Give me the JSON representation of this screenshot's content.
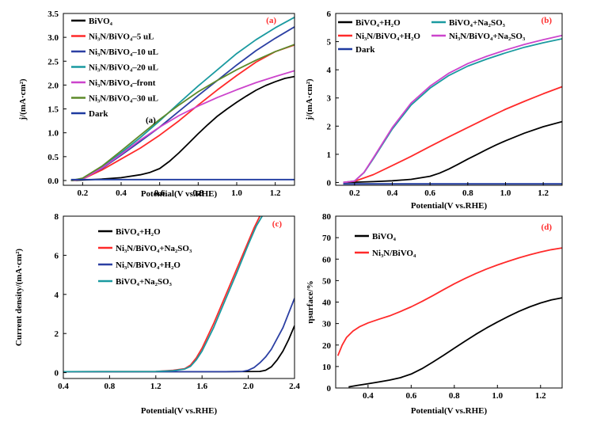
{
  "chart_data": [
    {
      "type": "line",
      "panel_label": "(a)",
      "inner_label": "(a)",
      "xlabel": "Potential(V vs.RHE)",
      "ylabel": "j/(mA·cm²)",
      "xlim": [
        0.1,
        1.3
      ],
      "ylim": [
        -0.1,
        3.5
      ],
      "xticks": [
        0.2,
        0.4,
        0.6,
        0.8,
        1.0,
        1.2
      ],
      "xtick_labels": [
        "0.2",
        "0.4",
        "0.6",
        "0.8",
        "1.0",
        "1.2"
      ],
      "yticks": [
        0.0,
        0.5,
        1.0,
        1.5,
        2.0,
        2.5,
        3.0,
        3.5
      ],
      "ytick_labels": [
        "0.0",
        "0.5",
        "1.0",
        "1.5",
        "2.0",
        "2.5",
        "3.0",
        "3.5"
      ],
      "legend_position": "top-left",
      "series": [
        {
          "name": "BiVO₄",
          "color": "#000000",
          "x": [
            0.14,
            0.2,
            0.3,
            0.4,
            0.5,
            0.55,
            0.6,
            0.65,
            0.7,
            0.75,
            0.8,
            0.85,
            0.9,
            0.95,
            1.0,
            1.05,
            1.1,
            1.15,
            1.2,
            1.25,
            1.3
          ],
          "y": [
            0,
            0.01,
            0.03,
            0.06,
            0.12,
            0.17,
            0.25,
            0.4,
            0.58,
            0.78,
            0.98,
            1.17,
            1.35,
            1.5,
            1.64,
            1.77,
            1.89,
            1.99,
            2.07,
            2.14,
            2.18
          ]
        },
        {
          "name": "Ni₃N/BiVO₄–5 uL",
          "color": "#ff2a2a",
          "x": [
            0.14,
            0.2,
            0.3,
            0.4,
            0.5,
            0.6,
            0.7,
            0.8,
            0.9,
            1.0,
            1.1,
            1.2,
            1.3
          ],
          "y": [
            0,
            0.03,
            0.22,
            0.45,
            0.68,
            0.95,
            1.25,
            1.58,
            1.9,
            2.2,
            2.48,
            2.7,
            2.84
          ]
        },
        {
          "name": "Ni₃N/BiVO₄–10 uL",
          "color": "#2b3fa3",
          "x": [
            0.14,
            0.2,
            0.3,
            0.4,
            0.5,
            0.6,
            0.7,
            0.8,
            0.9,
            1.0,
            1.1,
            1.2,
            1.3
          ],
          "y": [
            0,
            0.04,
            0.25,
            0.53,
            0.82,
            1.12,
            1.45,
            1.78,
            2.1,
            2.42,
            2.72,
            2.98,
            3.22
          ]
        },
        {
          "name": "Ni₃N/BiVO₄–20 uL",
          "color": "#1a9aa0",
          "x": [
            0.14,
            0.2,
            0.3,
            0.4,
            0.5,
            0.6,
            0.7,
            0.8,
            0.9,
            1.0,
            1.1,
            1.2,
            1.3
          ],
          "y": [
            0,
            0.04,
            0.28,
            0.58,
            0.9,
            1.25,
            1.62,
            1.98,
            2.32,
            2.66,
            2.95,
            3.2,
            3.42
          ]
        },
        {
          "name": "Ni₃N/BiVO₄–front",
          "color": "#cc44cc",
          "x": [
            0.14,
            0.2,
            0.3,
            0.4,
            0.5,
            0.6,
            0.7,
            0.8,
            0.9,
            1.0,
            1.1,
            1.2,
            1.3
          ],
          "y": [
            0,
            0.03,
            0.26,
            0.55,
            0.85,
            1.12,
            1.36,
            1.56,
            1.74,
            1.9,
            2.05,
            2.18,
            2.3
          ]
        },
        {
          "name": "Ni₃N/BiVO₄–30 uL",
          "color": "#5d8a2a",
          "x": [
            0.14,
            0.2,
            0.3,
            0.4,
            0.5,
            0.6,
            0.7,
            0.8,
            0.9,
            1.0,
            1.1,
            1.2,
            1.3
          ],
          "y": [
            0,
            0.05,
            0.3,
            0.62,
            0.95,
            1.28,
            1.58,
            1.86,
            2.1,
            2.32,
            2.52,
            2.7,
            2.85
          ]
        },
        {
          "name": "Dark",
          "color": "#1e3aa0",
          "x": [
            0.14,
            1.3
          ],
          "y": [
            0.02,
            0.02
          ]
        }
      ]
    },
    {
      "type": "line",
      "panel_label": "(b)",
      "xlabel": "Potential(V vs.RHE)",
      "ylabel": "j/(mA·cm²)",
      "xlim": [
        0.1,
        1.3
      ],
      "ylim": [
        -0.1,
        6.0
      ],
      "xticks": [
        0.2,
        0.4,
        0.6,
        0.8,
        1.0,
        1.2
      ],
      "xtick_labels": [
        "0.2",
        "0.4",
        "0.6",
        "0.8",
        "1.0",
        "1.2"
      ],
      "yticks": [
        0,
        1,
        2,
        3,
        4,
        5,
        6
      ],
      "ytick_labels": [
        "0",
        "1",
        "2",
        "3",
        "4",
        "5",
        "6"
      ],
      "legend_position": "top",
      "series": [
        {
          "name": "BiVO₄+H₂O",
          "color": "#000000",
          "x": [
            0.14,
            0.2,
            0.3,
            0.4,
            0.5,
            0.6,
            0.65,
            0.7,
            0.75,
            0.8,
            0.85,
            0.9,
            0.95,
            1.0,
            1.1,
            1.2,
            1.3
          ],
          "y": [
            0,
            0.01,
            0.03,
            0.06,
            0.11,
            0.22,
            0.33,
            0.48,
            0.65,
            0.83,
            1.0,
            1.17,
            1.33,
            1.48,
            1.75,
            1.98,
            2.16
          ]
        },
        {
          "name": "Ni₃N/BiVO₄+H₂O",
          "color": "#ff2a2a",
          "x": [
            0.14,
            0.2,
            0.3,
            0.4,
            0.5,
            0.6,
            0.7,
            0.8,
            0.9,
            1.0,
            1.1,
            1.2,
            1.3
          ],
          "y": [
            0,
            0.04,
            0.28,
            0.6,
            0.93,
            1.28,
            1.62,
            1.95,
            2.28,
            2.6,
            2.88,
            3.15,
            3.4
          ]
        },
        {
          "name": "Dark",
          "color": "#1e3aa0",
          "x": [
            0.14,
            1.3
          ],
          "y": [
            -0.05,
            -0.05
          ]
        },
        {
          "name": "BiVO₄+Na₂SO₃",
          "color": "#1a9aa0",
          "x": [
            0.14,
            0.2,
            0.25,
            0.3,
            0.4,
            0.5,
            0.6,
            0.7,
            0.8,
            0.9,
            1.0,
            1.1,
            1.2,
            1.3
          ],
          "y": [
            0,
            0.05,
            0.35,
            0.85,
            1.9,
            2.75,
            3.35,
            3.8,
            4.13,
            4.38,
            4.6,
            4.8,
            4.96,
            5.1
          ]
        },
        {
          "name": "Ni₃N/BiVO₄+Na₂SO₃",
          "color": "#cc44cc",
          "x": [
            0.14,
            0.2,
            0.25,
            0.3,
            0.4,
            0.5,
            0.6,
            0.7,
            0.8,
            0.9,
            1.0,
            1.1,
            1.2,
            1.3
          ],
          "y": [
            0,
            0.05,
            0.36,
            0.88,
            1.95,
            2.82,
            3.42,
            3.88,
            4.22,
            4.48,
            4.7,
            4.9,
            5.07,
            5.22
          ]
        }
      ]
    },
    {
      "type": "line",
      "panel_label": "(c)",
      "xlabel": "Potential(V vs.RHE)",
      "ylabel": "Current density/(mA·cm²)",
      "xlim": [
        0.4,
        2.4
      ],
      "ylim": [
        -0.3,
        8.0
      ],
      "xticks": [
        0.4,
        0.8,
        1.2,
        1.6,
        2.0,
        2.4
      ],
      "xtick_labels": [
        "0.4",
        "0.8",
        "1.2",
        "1.6",
        "2.0",
        "2.4"
      ],
      "yticks": [
        0,
        2,
        4,
        6,
        8
      ],
      "ytick_labels": [
        "0",
        "2",
        "4",
        "6",
        "8"
      ],
      "legend_position": "top-left",
      "series": [
        {
          "name": "BiVO₄+H₂O",
          "color": "#000000",
          "x": [
            0.4,
            1.8,
            2.1,
            2.15,
            2.2,
            2.25,
            2.3,
            2.35,
            2.4
          ],
          "y": [
            0.05,
            0.05,
            0.06,
            0.12,
            0.3,
            0.65,
            1.1,
            1.7,
            2.4
          ]
        },
        {
          "name": "Ni₃N/BiVO₄+Na₂SO₃",
          "color": "#ff2a2a",
          "x": [
            0.4,
            1.2,
            1.35,
            1.45,
            1.5,
            1.55,
            1.6,
            1.7,
            1.8,
            1.9,
            2.0,
            2.05,
            2.1
          ],
          "y": [
            0.05,
            0.06,
            0.12,
            0.2,
            0.38,
            0.75,
            1.25,
            2.5,
            3.9,
            5.3,
            6.7,
            7.4,
            8.0
          ]
        },
        {
          "name": "Ni₃N/BiVO₄+H₂O",
          "color": "#2b3fa3",
          "x": [
            0.4,
            1.8,
            1.95,
            2.0,
            2.05,
            2.1,
            2.15,
            2.2,
            2.3,
            2.4
          ],
          "y": [
            0.05,
            0.05,
            0.06,
            0.12,
            0.26,
            0.5,
            0.8,
            1.2,
            2.3,
            3.8
          ]
        },
        {
          "name": "BiVO₄+Na₂SO₃",
          "color": "#1a9aa0",
          "x": [
            0.4,
            1.2,
            1.35,
            1.45,
            1.5,
            1.55,
            1.6,
            1.7,
            1.8,
            1.9,
            2.0,
            2.07,
            2.12
          ],
          "y": [
            0.05,
            0.06,
            0.1,
            0.18,
            0.32,
            0.65,
            1.1,
            2.3,
            3.7,
            5.1,
            6.55,
            7.5,
            8.0
          ]
        }
      ]
    },
    {
      "type": "line",
      "panel_label": "(d)",
      "xlabel": "Potential(V vs.RHE)",
      "ylabel": "ηsurface/%",
      "xlim": [
        0.25,
        1.3
      ],
      "ylim": [
        0,
        80
      ],
      "xticks": [
        0.4,
        0.6,
        0.8,
        1.0,
        1.2
      ],
      "xtick_labels": [
        "0.4",
        "0.6",
        "0.8",
        "1.0",
        "1.2"
      ],
      "yticks": [
        0,
        10,
        20,
        30,
        40,
        50,
        60,
        70,
        80
      ],
      "ytick_labels": [
        "0",
        "10",
        "20",
        "30",
        "40",
        "50",
        "60",
        "70",
        "80"
      ],
      "legend_position": "top-left",
      "series": [
        {
          "name": "BiVO₄",
          "color": "#000000",
          "x": [
            0.31,
            0.35,
            0.4,
            0.45,
            0.5,
            0.55,
            0.6,
            0.65,
            0.7,
            0.75,
            0.8,
            0.85,
            0.9,
            0.95,
            1.0,
            1.05,
            1.1,
            1.15,
            1.2,
            1.25,
            1.3
          ],
          "y": [
            0.5,
            1.2,
            2.0,
            2.8,
            3.7,
            4.8,
            6.5,
            9.0,
            12.0,
            15.2,
            18.5,
            21.8,
            25.0,
            28.0,
            30.7,
            33.3,
            35.7,
            37.8,
            39.6,
            41.0,
            42.0
          ]
        },
        {
          "name": "Ni₃N/BiVO₄",
          "color": "#ff2a2a",
          "x": [
            0.26,
            0.28,
            0.3,
            0.33,
            0.36,
            0.4,
            0.45,
            0.5,
            0.55,
            0.6,
            0.65,
            0.7,
            0.75,
            0.8,
            0.85,
            0.9,
            0.95,
            1.0,
            1.05,
            1.1,
            1.15,
            1.2,
            1.25,
            1.3
          ],
          "y": [
            15,
            20,
            23.5,
            26.5,
            28.5,
            30.3,
            32.0,
            33.6,
            35.6,
            37.8,
            40.3,
            43.0,
            45.8,
            48.5,
            51.0,
            53.3,
            55.4,
            57.3,
            59.0,
            60.6,
            62.0,
            63.3,
            64.4,
            65.2
          ]
        }
      ]
    }
  ]
}
